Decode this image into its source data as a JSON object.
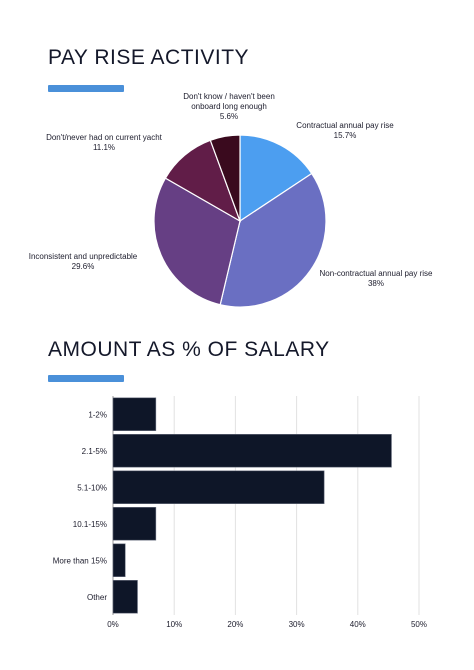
{
  "colors": {
    "accent": "#4a90d9",
    "bar": "#0e1628",
    "grid": "#e2e2e2"
  },
  "section1": {
    "title": "PAY RISE ACTIVITY"
  },
  "section2": {
    "title": "AMOUNT AS % OF SALARY"
  },
  "chart_data": [
    {
      "type": "pie",
      "title": "PAY RISE ACTIVITY",
      "slices": [
        {
          "label": "Contractual annual pay rise",
          "value_label": "15.7%",
          "value": 15.7,
          "color": "#4c9ef0"
        },
        {
          "label": "Non-contractual annual pay rise",
          "value_label": "38%",
          "value": 38,
          "color": "#6a6fc2"
        },
        {
          "label": "Inconsistent and unpredictable",
          "value_label": "29.6%",
          "value": 29.6,
          "color": "#663f84"
        },
        {
          "label": "Don't/never had on current yacht",
          "value_label": "11.1%",
          "value": 11.1,
          "color": "#611d48"
        },
        {
          "label_lines": [
            "Don't know / haven't been",
            "onboard long enough"
          ],
          "value_label": "5.6%",
          "value": 5.6,
          "color": "#3a0a1e"
        }
      ]
    },
    {
      "type": "bar",
      "orientation": "horizontal",
      "title": "AMOUNT AS % OF SALARY",
      "categories": [
        "1-2%",
        "2.1-5%",
        "5.1-10%",
        "10.1-15%",
        "More than 15%",
        "Other"
      ],
      "values": [
        7,
        45.5,
        34.5,
        7,
        2,
        4
      ],
      "xlim": [
        0,
        50
      ],
      "xticks": [
        "0%",
        "10%",
        "20%",
        "30%",
        "40%",
        "50%"
      ],
      "grid": true
    }
  ]
}
